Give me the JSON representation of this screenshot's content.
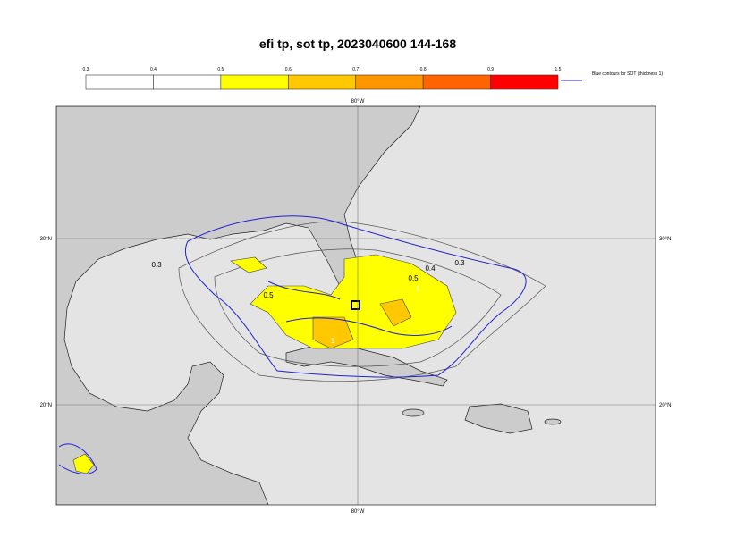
{
  "title": "efi tp, sot tp, 2023040600 144-168",
  "colorbar": {
    "ticks": [
      "0.3",
      "0.4",
      "0.5",
      "0.6",
      "0.7",
      "0.8",
      "0.9",
      "1.5"
    ],
    "colors": [
      "#ffffff",
      "#ffffff",
      "#ffff00",
      "#ffc800",
      "#ff9600",
      "#ff6400",
      "#ff0000"
    ]
  },
  "legend": "Blue contours for SOT (thickness 1)",
  "map": {
    "lon_labels": [
      "80°W"
    ],
    "lat_labels": [
      "30°N",
      "20°N"
    ],
    "contour_labels": [
      "0.3",
      "0.4",
      "0.5",
      "1",
      "1",
      "0.3",
      "0.5"
    ]
  }
}
